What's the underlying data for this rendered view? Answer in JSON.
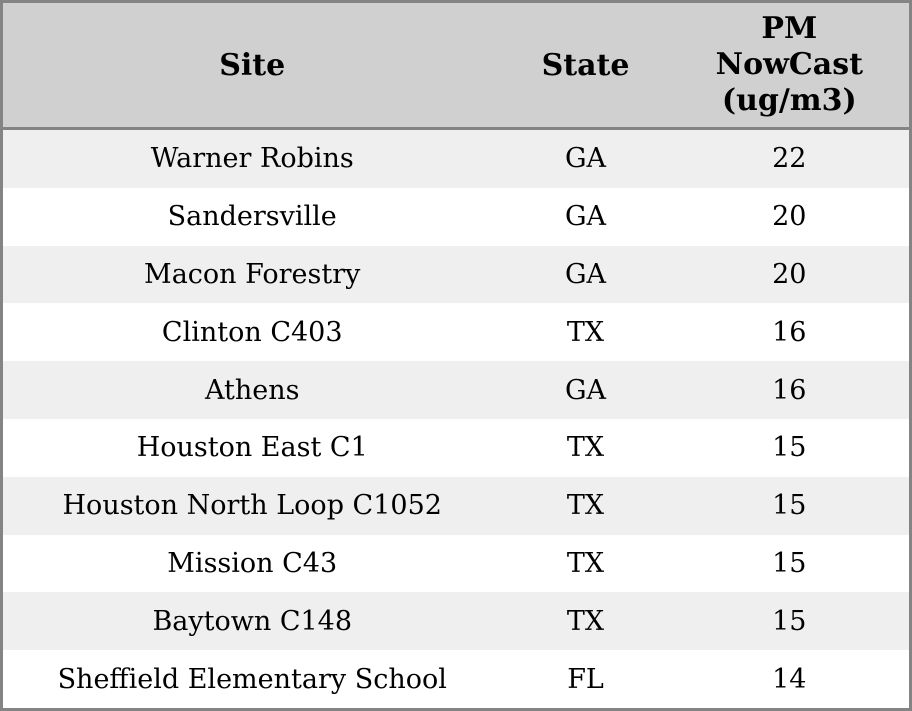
{
  "chart_data": {
    "type": "table",
    "columns": [
      {
        "id": "site",
        "label": "Site"
      },
      {
        "id": "state",
        "label": "State"
      },
      {
        "id": "pm_nowcast",
        "label": "PM NowCast (ug/m3)",
        "lines": [
          "PM",
          "NowCast",
          "(ug/m3)"
        ]
      }
    ],
    "rows": [
      {
        "site": "Warner Robins",
        "state": "GA",
        "pm_nowcast": 22
      },
      {
        "site": "Sandersville",
        "state": "GA",
        "pm_nowcast": 20
      },
      {
        "site": "Macon Forestry",
        "state": "GA",
        "pm_nowcast": 20
      },
      {
        "site": "Clinton C403",
        "state": "TX",
        "pm_nowcast": 16
      },
      {
        "site": "Athens",
        "state": "GA",
        "pm_nowcast": 16
      },
      {
        "site": "Houston East C1",
        "state": "TX",
        "pm_nowcast": 15
      },
      {
        "site": "Houston North Loop C1052",
        "state": "TX",
        "pm_nowcast": 15
      },
      {
        "site": "Mission C43",
        "state": "TX",
        "pm_nowcast": 15
      },
      {
        "site": "Baytown C148",
        "state": "TX",
        "pm_nowcast": 15
      },
      {
        "site": "Sheffield Elementary School",
        "state": "FL",
        "pm_nowcast": 14
      }
    ]
  },
  "colors": {
    "header_bg": "#d0d0d0",
    "row_stripe_bg": "#efefef",
    "row_bg": "#ffffff",
    "border": "#848484",
    "text": "#000000"
  }
}
